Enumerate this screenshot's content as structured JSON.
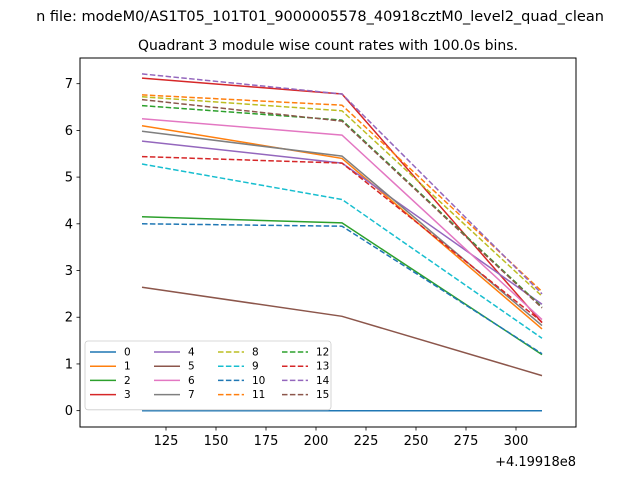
{
  "suptitle": "n file: modeM0/AS1T05_101T01_9000005578_40918cztM0_level2_quad_clean",
  "chart_data": {
    "type": "line",
    "title": "Quadrant 3 module wise count rates with 100.0s bins.",
    "xlabel": "",
    "ylabel": "",
    "x": [
      113,
      213,
      313
    ],
    "xlim": [
      82,
      330
    ],
    "ylim": [
      -0.35,
      7.55
    ],
    "x_ticks": [
      125,
      150,
      175,
      200,
      225,
      250,
      275,
      300
    ],
    "x_tick_labels": [
      "125",
      "150",
      "175",
      "200",
      "225",
      "250",
      "275",
      "300"
    ],
    "y_ticks": [
      0,
      1,
      2,
      3,
      4,
      5,
      6,
      7
    ],
    "y_tick_labels": [
      "0",
      "1",
      "2",
      "3",
      "4",
      "5",
      "6",
      "7"
    ],
    "x_offset_label": "+4.19918e8",
    "grid": false,
    "legend_position": "lower-left",
    "legend_columns": 4,
    "series": [
      {
        "name": "0",
        "color": "#1f77b4",
        "dash": "solid",
        "values": [
          0.0,
          0.0,
          0.0
        ]
      },
      {
        "name": "1",
        "color": "#ff7f0e",
        "dash": "solid",
        "values": [
          6.1,
          5.4,
          1.75
        ]
      },
      {
        "name": "2",
        "color": "#2ca02c",
        "dash": "solid",
        "values": [
          4.15,
          4.02,
          1.2
        ]
      },
      {
        "name": "3",
        "color": "#d62728",
        "dash": "solid",
        "values": [
          7.12,
          6.78,
          1.88
        ]
      },
      {
        "name": "4",
        "color": "#9467bd",
        "dash": "solid",
        "values": [
          5.77,
          5.3,
          2.28
        ]
      },
      {
        "name": "5",
        "color": "#8c564b",
        "dash": "solid",
        "values": [
          2.64,
          2.02,
          0.75
        ]
      },
      {
        "name": "6",
        "color": "#e377c2",
        "dash": "solid",
        "values": [
          6.25,
          5.9,
          1.95
        ]
      },
      {
        "name": "7",
        "color": "#7f7f7f",
        "dash": "solid",
        "values": [
          5.98,
          5.45,
          1.82
        ]
      },
      {
        "name": "8",
        "color": "#bcbd22",
        "dash": "dashed",
        "values": [
          6.72,
          6.42,
          2.45
        ]
      },
      {
        "name": "9",
        "color": "#17becf",
        "dash": "dashed",
        "values": [
          5.28,
          4.52,
          1.55
        ]
      },
      {
        "name": "10",
        "color": "#1f77b4",
        "dash": "dashed",
        "values": [
          4.0,
          3.95,
          1.22
        ]
      },
      {
        "name": "11",
        "color": "#ff7f0e",
        "dash": "dashed",
        "values": [
          6.76,
          6.54,
          2.55
        ]
      },
      {
        "name": "12",
        "color": "#2ca02c",
        "dash": "dashed",
        "values": [
          6.53,
          6.22,
          2.22
        ]
      },
      {
        "name": "13",
        "color": "#d62728",
        "dash": "dashed",
        "values": [
          5.44,
          5.3,
          1.9
        ]
      },
      {
        "name": "14",
        "color": "#9467bd",
        "dash": "dashed",
        "values": [
          7.21,
          6.78,
          2.5
        ]
      },
      {
        "name": "15",
        "color": "#8c564b",
        "dash": "dashed",
        "values": [
          6.66,
          6.2,
          2.2
        ]
      }
    ]
  }
}
